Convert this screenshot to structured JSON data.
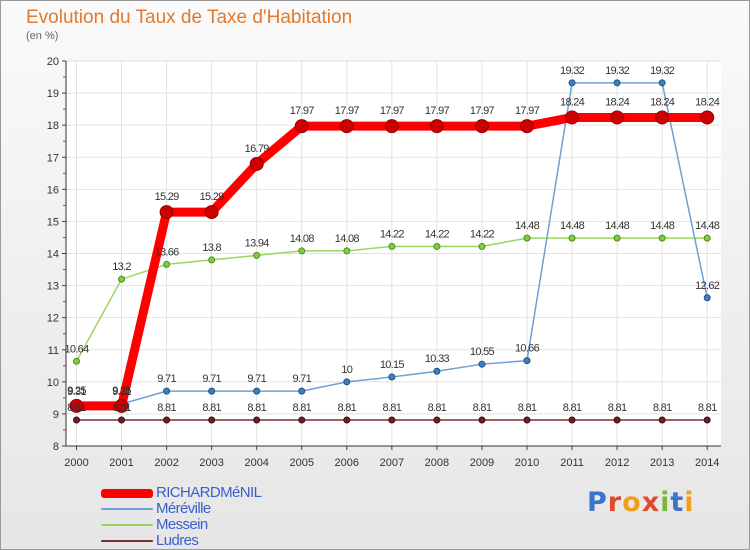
{
  "page": {
    "title": "Evolution du Taux de Taxe d'Habitation",
    "unit": "(en %)",
    "logo": "Proxiti"
  },
  "chart_data": {
    "type": "line",
    "title": "Evolution du Taux de Taxe d'Habitation",
    "ylabel": "(en %)",
    "xlabel": "",
    "ylim": [
      8,
      20
    ],
    "yticks": [
      8,
      9,
      10,
      11,
      12,
      13,
      14,
      15,
      16,
      17,
      18,
      19,
      20
    ],
    "x": [
      "2000",
      "2001",
      "2002",
      "2003",
      "2004",
      "2005",
      "2006",
      "2007",
      "2008",
      "2009",
      "2010",
      "2011",
      "2012",
      "2013",
      "2014"
    ],
    "grid": true,
    "legend_position": "bottom-left",
    "series": [
      {
        "name": "RICHARDMéNIL",
        "color": "#ff0000",
        "values": [
          9.25,
          9.25,
          15.29,
          15.29,
          16.79,
          17.97,
          17.97,
          17.97,
          17.97,
          17.97,
          17.97,
          18.24,
          18.24,
          18.24,
          18.24
        ],
        "labels": [
          "9.25",
          "9.25",
          "15.29",
          "15.29",
          "16.79",
          "17.97",
          "17.97",
          "17.97",
          "17.97",
          "17.97",
          "17.97",
          "18.24",
          "18.24",
          "18.24",
          "18.24"
        ]
      },
      {
        "name": "Méréville",
        "color": "#6fa0d6",
        "values": [
          9.31,
          9.31,
          9.71,
          9.71,
          9.71,
          9.71,
          10,
          10.15,
          10.33,
          10.55,
          10.66,
          19.32,
          19.32,
          19.32,
          12.62
        ],
        "labels": [
          "9.31",
          "9.31",
          "9.71",
          "9.71",
          "9.71",
          "9.71",
          "10",
          "10.15",
          "10.33",
          "10.55",
          "10.66",
          "19.32",
          "19.32",
          "19.32",
          "12.62"
        ]
      },
      {
        "name": "Messein",
        "color": "#9ad65f",
        "values": [
          10.64,
          13.2,
          13.66,
          13.8,
          13.94,
          14.08,
          14.08,
          14.22,
          14.22,
          14.22,
          14.48,
          14.48,
          14.48,
          14.48,
          14.48
        ],
        "labels": [
          "10.64",
          "13.2",
          "13.66",
          "13.8",
          "13.94",
          "14.08",
          "14.08",
          "14.22",
          "14.22",
          "14.22",
          "14.48",
          "14.48",
          "14.48",
          "14.48",
          "14.48"
        ]
      },
      {
        "name": "Ludres",
        "color": "#7a2e35",
        "values": [
          8.81,
          8.81,
          8.81,
          8.81,
          8.81,
          8.81,
          8.81,
          8.81,
          8.81,
          8.81,
          8.81,
          8.81,
          8.81,
          8.81,
          8.81
        ],
        "labels": [
          "8.81",
          "8.81",
          "8.81",
          "8.81",
          "8.81",
          "8.81",
          "8.81",
          "8.81",
          "8.81",
          "8.81",
          "8.81",
          "8.81",
          "8.81",
          "8.81",
          "8.81"
        ]
      }
    ]
  }
}
